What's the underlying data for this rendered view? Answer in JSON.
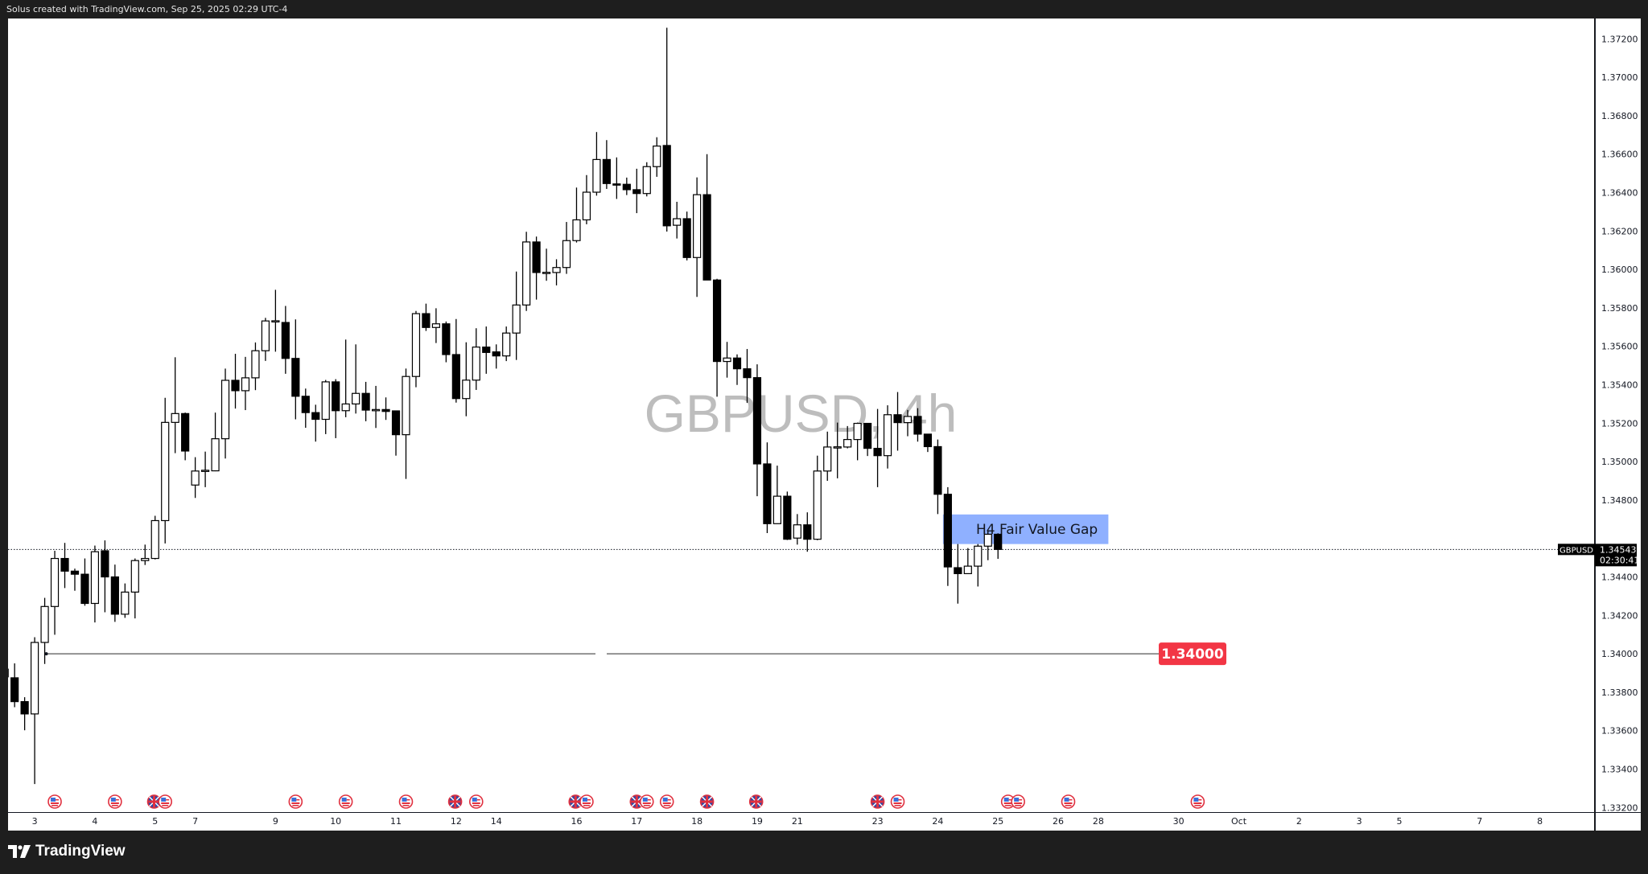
{
  "header": {
    "caption": "Solus created with TradingView.com, Sep 25, 2025 02:29 UTC-4"
  },
  "footer": {
    "brand": "TradingView"
  },
  "chart_data": {
    "type": "candlestick",
    "symbol": "GBPUSD",
    "watermark": "GBPUSD, 4h",
    "ylim": [
      1.332,
      1.372
    ],
    "y_ticks": [
      "1.37200",
      "1.37000",
      "1.36800",
      "1.36600",
      "1.36400",
      "1.36200",
      "1.36000",
      "1.35800",
      "1.35600",
      "1.35400",
      "1.35200",
      "1.35000",
      "1.34800",
      "1.34600",
      "1.34400",
      "1.34200",
      "1.34000",
      "1.33800",
      "1.33600",
      "1.33400",
      "1.33200"
    ],
    "x_ticks": [
      {
        "label": "3",
        "bar": 3
      },
      {
        "label": "4",
        "bar": 9
      },
      {
        "label": "5",
        "bar": 15
      },
      {
        "label": "7",
        "bar": 19
      },
      {
        "label": "9",
        "bar": 27
      },
      {
        "label": "10",
        "bar": 33
      },
      {
        "label": "11",
        "bar": 39
      },
      {
        "label": "12",
        "bar": 45
      },
      {
        "label": "14",
        "bar": 49
      },
      {
        "label": "16",
        "bar": 57
      },
      {
        "label": "17",
        "bar": 63
      },
      {
        "label": "18",
        "bar": 69
      },
      {
        "label": "19",
        "bar": 75
      },
      {
        "label": "21",
        "bar": 79
      },
      {
        "label": "23",
        "bar": 87
      },
      {
        "label": "24",
        "bar": 93
      },
      {
        "label": "25",
        "bar": 99
      },
      {
        "label": "26",
        "bar": 105
      },
      {
        "label": "28",
        "bar": 109
      },
      {
        "label": "30",
        "bar": 117
      },
      {
        "label": "Oct",
        "bar": 123
      },
      {
        "label": "2",
        "bar": 129
      },
      {
        "label": "3",
        "bar": 135
      },
      {
        "label": "5",
        "bar": 139
      },
      {
        "label": "7",
        "bar": 147
      },
      {
        "label": "8",
        "bar": 153
      }
    ],
    "ohlc": [
      [
        1.3392,
        1.3394,
        1.3385,
        1.3388
      ],
      [
        1.33875,
        1.3395,
        1.33722,
        1.33751
      ],
      [
        1.33751,
        1.33774,
        1.33602,
        1.33687
      ],
      [
        1.33687,
        1.34086,
        1.33322,
        1.34059
      ],
      [
        1.34059,
        1.34291,
        1.33947,
        1.34246
      ],
      [
        1.34246,
        1.34536,
        1.34099,
        1.34496
      ],
      [
        1.34496,
        1.34577,
        1.34342,
        1.3443
      ],
      [
        1.3443,
        1.34443,
        1.34328,
        1.34414
      ],
      [
        1.34414,
        1.34496,
        1.3425,
        1.34262
      ],
      [
        1.34262,
        1.34563,
        1.34163,
        1.34531
      ],
      [
        1.34536,
        1.3459,
        1.34216,
        1.344
      ],
      [
        1.344,
        1.34464,
        1.34166,
        1.34206
      ],
      [
        1.34206,
        1.34366,
        1.34187,
        1.34321
      ],
      [
        1.34321,
        1.34496,
        1.34184,
        1.34485
      ],
      [
        1.34485,
        1.34568,
        1.34462,
        1.34496
      ],
      [
        1.34496,
        1.34718,
        1.34491,
        1.34693
      ],
      [
        1.34693,
        1.35332,
        1.34574,
        1.35204
      ],
      [
        1.35204,
        1.35543,
        1.35044,
        1.3525
      ],
      [
        1.3525,
        1.35255,
        1.35007,
        1.35055
      ],
      [
        1.34878,
        1.35023,
        1.34811,
        1.34951
      ],
      [
        1.34952,
        1.35052,
        1.34867,
        1.34955
      ],
      [
        1.34952,
        1.35255,
        1.3495,
        1.35119
      ],
      [
        1.35119,
        1.35484,
        1.35016,
        1.35423
      ],
      [
        1.35423,
        1.35561,
        1.35276,
        1.35369
      ],
      [
        1.35369,
        1.35545,
        1.35268,
        1.35436
      ],
      [
        1.35436,
        1.3562,
        1.35372,
        1.35577
      ],
      [
        1.35577,
        1.35748,
        1.35524,
        1.35732
      ],
      [
        1.35729,
        1.35894,
        1.35572,
        1.35733
      ],
      [
        1.35724,
        1.3581,
        1.35457,
        1.35537
      ],
      [
        1.35537,
        1.3574,
        1.3522,
        1.3534
      ],
      [
        1.3534,
        1.3538,
        1.35176,
        1.35255
      ],
      [
        1.35255,
        1.35296,
        1.35104,
        1.3522
      ],
      [
        1.3522,
        1.35425,
        1.35143,
        1.35415
      ],
      [
        1.35415,
        1.35429,
        1.35122,
        1.35265
      ],
      [
        1.35265,
        1.35635,
        1.35231,
        1.353
      ],
      [
        1.353,
        1.3561,
        1.3525,
        1.35355
      ],
      [
        1.35355,
        1.35415,
        1.3521,
        1.35268
      ],
      [
        1.3527,
        1.35394,
        1.35175,
        1.35271
      ],
      [
        1.35271,
        1.35334,
        1.35217,
        1.35261
      ],
      [
        1.35264,
        1.35264,
        1.35031,
        1.3514
      ],
      [
        1.3514,
        1.35484,
        1.3491,
        1.35443
      ],
      [
        1.35443,
        1.35784,
        1.35387,
        1.3577
      ],
      [
        1.3577,
        1.35822,
        1.3568,
        1.35698
      ],
      [
        1.35698,
        1.35798,
        1.35617,
        1.35717
      ],
      [
        1.35717,
        1.35729,
        1.35517,
        1.35557
      ],
      [
        1.35557,
        1.35742,
        1.35307,
        1.35328
      ],
      [
        1.35328,
        1.35621,
        1.35236,
        1.35424
      ],
      [
        1.35424,
        1.35694,
        1.35373,
        1.35596
      ],
      [
        1.35596,
        1.35703,
        1.35457,
        1.35568
      ],
      [
        1.35571,
        1.3561,
        1.35484,
        1.3555
      ],
      [
        1.3555,
        1.35703,
        1.35523,
        1.35669
      ],
      [
        1.35669,
        1.35989,
        1.35529,
        1.35815
      ],
      [
        1.35815,
        1.36196,
        1.35784,
        1.36143
      ],
      [
        1.36143,
        1.36171,
        1.35843,
        1.35984
      ],
      [
        1.35984,
        1.36108,
        1.35941,
        1.35985
      ],
      [
        1.35984,
        1.36053,
        1.35917,
        1.3601
      ],
      [
        1.3601,
        1.36247,
        1.35977,
        1.3615
      ],
      [
        1.3615,
        1.36426,
        1.3614,
        1.36258
      ],
      [
        1.36258,
        1.36491,
        1.36235,
        1.36402
      ],
      [
        1.36402,
        1.36715,
        1.36384,
        1.36572
      ],
      [
        1.36572,
        1.36673,
        1.36419,
        1.36447
      ],
      [
        1.36445,
        1.36583,
        1.36367,
        1.36444
      ],
      [
        1.36443,
        1.36478,
        1.36387,
        1.36415
      ],
      [
        1.36415,
        1.36524,
        1.36293,
        1.36395
      ],
      [
        1.36395,
        1.36558,
        1.3638,
        1.36535
      ],
      [
        1.36535,
        1.36688,
        1.36482,
        1.36642
      ],
      [
        1.36645,
        1.37258,
        1.36197,
        1.36227
      ],
      [
        1.3623,
        1.36352,
        1.36161,
        1.36264
      ],
      [
        1.36264,
        1.36301,
        1.36047,
        1.36062
      ],
      [
        1.36062,
        1.36479,
        1.35857,
        1.36389
      ],
      [
        1.36389,
        1.366,
        1.35945,
        1.35945
      ],
      [
        1.35945,
        1.35951,
        1.35338,
        1.35521
      ],
      [
        1.35521,
        1.35623,
        1.35437,
        1.35539
      ],
      [
        1.35539,
        1.35558,
        1.35399,
        1.35483
      ],
      [
        1.35483,
        1.35586,
        1.35306,
        1.35437
      ],
      [
        1.35437,
        1.35506,
        1.3482,
        1.34988
      ],
      [
        1.34988,
        1.351,
        1.34628,
        1.34677
      ],
      [
        1.34677,
        1.34979,
        1.34676,
        1.3482
      ],
      [
        1.3482,
        1.34844,
        1.34592,
        1.34596
      ],
      [
        1.34602,
        1.34727,
        1.34568,
        1.34671
      ],
      [
        1.34671,
        1.34736,
        1.34531,
        1.34596
      ],
      [
        1.34596,
        1.35031,
        1.34591,
        1.34951
      ],
      [
        1.34951,
        1.35156,
        1.349,
        1.35076
      ],
      [
        1.35076,
        1.35203,
        1.34913,
        1.35077
      ],
      [
        1.35076,
        1.35185,
        1.35069,
        1.35115
      ],
      [
        1.35115,
        1.35203,
        1.35007,
        1.35199
      ],
      [
        1.35199,
        1.35199,
        1.35029,
        1.35069
      ],
      [
        1.35069,
        1.35274,
        1.34867,
        1.35031
      ],
      [
        1.35031,
        1.35293,
        1.34964,
        1.35244
      ],
      [
        1.35244,
        1.35362,
        1.35057,
        1.35203
      ],
      [
        1.35203,
        1.35269,
        1.35132,
        1.35235
      ],
      [
        1.35235,
        1.35278,
        1.35104,
        1.35143
      ],
      [
        1.35143,
        1.35143,
        1.3505,
        1.35078
      ],
      [
        1.35078,
        1.35115,
        1.34727,
        1.3483
      ],
      [
        1.3483,
        1.34867,
        1.34353,
        1.34452
      ],
      [
        1.34448,
        1.34571,
        1.34261,
        1.34417
      ],
      [
        1.34417,
        1.3455,
        1.34417,
        1.34456
      ],
      [
        1.34456,
        1.34571,
        1.3435,
        1.3456
      ],
      [
        1.3456,
        1.34643,
        1.34487,
        1.34622
      ],
      [
        1.34622,
        1.34627,
        1.34494,
        1.34543
      ]
    ],
    "up_color": "#ffffff",
    "down_color": "#000000",
    "current_price": {
      "symbol": "GBPUSD",
      "price": "1.34543",
      "countdown": "02:30:41",
      "value": 1.34543
    },
    "horizontal_level": {
      "price": 1.34,
      "label": "1.34000",
      "color": "#f23645",
      "start_bar": 4
    },
    "fvg_zone": {
      "label": "H4 Fair Value Gap",
      "top": 1.34725,
      "bottom": 1.34571,
      "start_bar": 94,
      "end_bar": 110,
      "color": "#8fb0ff"
    },
    "events": [
      {
        "bar": 5,
        "country": "US"
      },
      {
        "bar": 11,
        "country": "US"
      },
      {
        "bar": 14.9,
        "country": "UK"
      },
      {
        "bar": 16,
        "country": "US"
      },
      {
        "bar": 29,
        "country": "US"
      },
      {
        "bar": 34,
        "country": "US"
      },
      {
        "bar": 40,
        "country": "US"
      },
      {
        "bar": 44.9,
        "country": "UK"
      },
      {
        "bar": 47,
        "country": "US"
      },
      {
        "bar": 56.9,
        "country": "UK"
      },
      {
        "bar": 58,
        "country": "US"
      },
      {
        "bar": 63,
        "country": "UK"
      },
      {
        "bar": 64,
        "country": "US"
      },
      {
        "bar": 66,
        "country": "US"
      },
      {
        "bar": 70,
        "country": "UK"
      },
      {
        "bar": 74.9,
        "country": "UK"
      },
      {
        "bar": 87,
        "country": "UK"
      },
      {
        "bar": 89,
        "country": "US"
      },
      {
        "bar": 100,
        "country": "US"
      },
      {
        "bar": 101,
        "country": "US"
      },
      {
        "bar": 106,
        "country": "US"
      },
      {
        "bar": 118.9,
        "country": "US"
      }
    ]
  }
}
